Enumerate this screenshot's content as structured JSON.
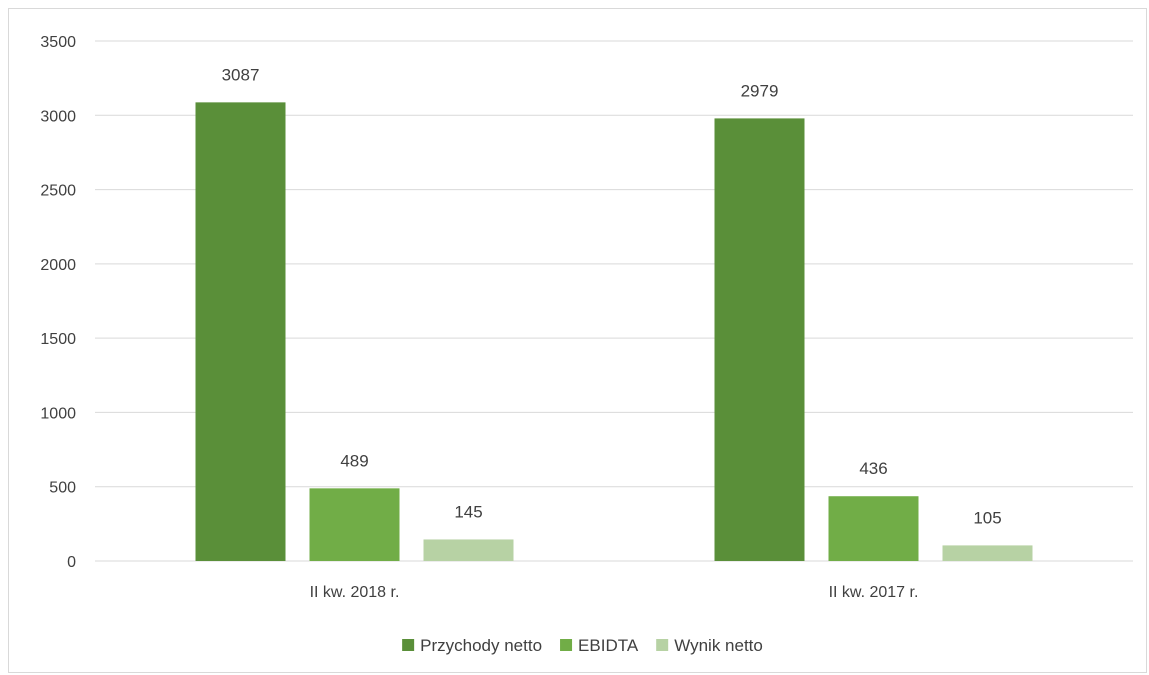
{
  "chart_data": {
    "type": "bar",
    "categories": [
      "II kw. 2018 r.",
      "II kw. 2017 r."
    ],
    "series": [
      {
        "name": "Przychody netto",
        "values": [
          3087,
          2979
        ],
        "color": "#5a8f39"
      },
      {
        "name": "EBIDTA",
        "values": [
          489,
          436
        ],
        "color": "#71ad47"
      },
      {
        "name": "Wynik netto",
        "values": [
          145,
          105
        ],
        "color": "#b7d2a4"
      }
    ],
    "ylim": [
      0,
      3500
    ],
    "yticks": [
      0,
      500,
      1000,
      1500,
      2000,
      2500,
      3000,
      3500
    ],
    "grid": true,
    "legend_position": "bottom",
    "title": "",
    "xlabel": "",
    "ylabel": ""
  }
}
